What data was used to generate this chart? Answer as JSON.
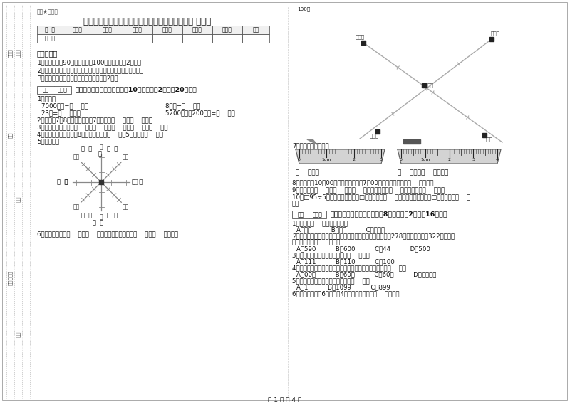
{
  "title": "贵州省实验小学三年级数学【下册】自我检测试题 附解析",
  "header_label": "题密★启用前",
  "page_bg": "#ffffff",
  "table_headers": [
    "题  号",
    "填空题",
    "选择题",
    "判断题",
    "计算题",
    "综合题",
    "应用题",
    "总分"
  ],
  "table_row": [
    "得  分",
    "",
    "",
    "",
    "",
    "",
    "",
    ""
  ],
  "notice_title": "考试须知：",
  "notice_items": [
    "1．考试时间：90分钟，满分为100分（含卷面分2分）。",
    "2．请首先按要求在试卷的指定位置填写您的姓名、班级、学号。",
    "3．不要在试卷上乱写乱画，卷面不整洁扣2分。"
  ],
  "section1_title": "一、用心思考，正确填空（共10小题，每题2分，共20分）。",
  "q1_title": "1．换算。",
  "q1_lines": [
    [
      "7000千克=（    ）吨",
      "8千克=（    ）克"
    ],
    [
      "23吨=（    ）千克",
      "5200千克－200千克=（    ）吨"
    ]
  ],
  "q2": "2．时针在7和8之间，分针指向7，这时是（    ）时（    ）分。",
  "q3": "3．常用的长度单位有（    ）、（    ）、（    ）、（    ）、（    ）。",
  "q4": "4．把一根绳子平均分成8份，每份是它的（    ），5份是它的（    ）。",
  "q5": "5．填一填。",
  "q6": "6．小红家在学校（    ）方（    ）米处；小明家在学校（    ）方（    ）米处。",
  "q7_title": "7．量出钉子的长度。",
  "q8": "8．小林晚上10：00睡觉，第二天早上7：00起床，他一共睡了（    ）小时。",
  "q9": "9．你出生于（    ）年（    ）月（    ）日，那一年是（    ）年，全年有（    ）天。",
  "q10a": "10．□95÷5，要使商是两位数，□里最大可填（    ）；要使商是三位数，□里最小应填（    ）",
  "q10b": "）。",
  "section2_title": "二、反复比较，慎重选择（共8小题，每题2分，共16分）。",
  "mc1_q": "1．四边形（    ）平行四边形。",
  "mc1_opts": "A．一定          B．可能          C．不可能",
  "mc2_q": "2．广州新电视塔是广州市目前最高的建筑，它比中信大厦高278米，中信大厦高322米，那么",
  "mc2_q2": "广州新电视塔高（    ）米。",
  "mc2_opts": "A．590          B．600          C．44          D．500",
  "mc3_q": "3．最大的三位数是最大一位数的（    ）倍。",
  "mc3_opts": "A．111          B．110          C．100",
  "mc4_q": "4．时针从上一个数字到相邻的下一个数字，经过的时间是（    ）。",
  "mc4_opts": "A．00秒          B．60分          C．60时          D．无法确定",
  "mc5_q": "5．最小三位数和最大三位数的和是（    ）。",
  "mc5_opts": "A．1          B．1099          C．899",
  "mc6_q": "6．一个长方形长6厘米，宽4厘米，它的周长是（    ）厘米。",
  "page_num": "第 1 页 共 4 页",
  "score_label": "得分",
  "judge_label": "评卷人",
  "scale_label": "100米",
  "school_label": "学校",
  "labels_map": {
    "xiaohong": "小红家",
    "xiaoming": "小明家",
    "xiaohua": "小华家",
    "xiaoli": "小李家"
  },
  "sidebar_top": [
    "审",
    "卷",
    "人"
  ],
  "sidebar_mid": [
    "核",
    "分",
    "人"
  ],
  "sidebar_labels": [
    "题号",
    "学校",
    "班级（班）",
    "姓名"
  ]
}
